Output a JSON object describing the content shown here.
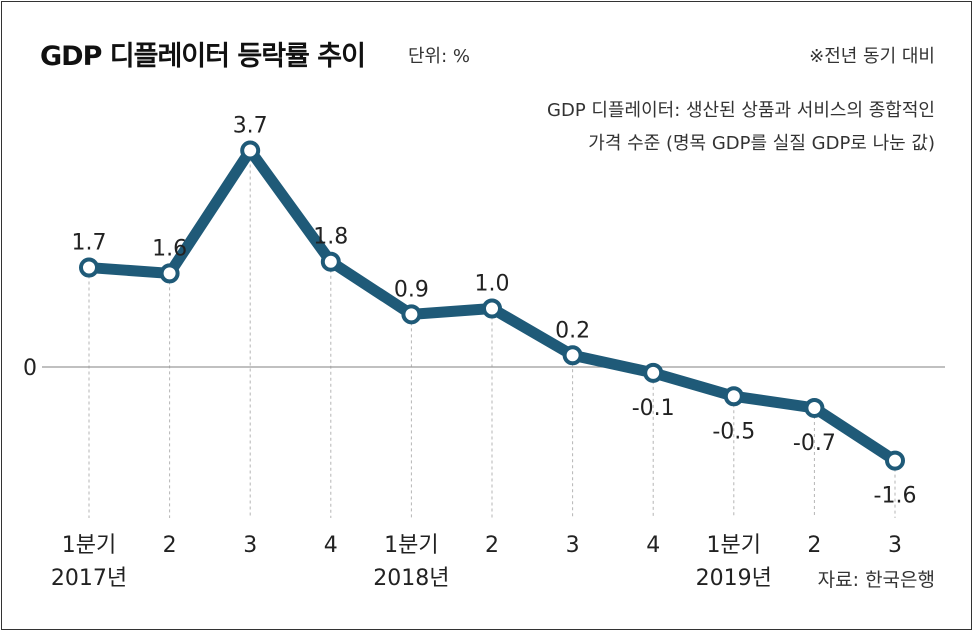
{
  "header": {
    "title": "GDP 디플레이터 등락률 추이",
    "unit": "단위: %",
    "basis": "※전년 동기 대비"
  },
  "note": {
    "line1": "GDP 디플레이터: 생산된 상품과 서비스의 종합적인",
    "line2": "가격 수준 (명목 GDP를 실질 GDP로 나눈 값)"
  },
  "source": "자료: 한국은행",
  "chart_data": {
    "type": "line",
    "categories": [
      "1분기",
      "2",
      "3",
      "4",
      "1분기",
      "2",
      "3",
      "4",
      "1분기",
      "2",
      "3"
    ],
    "year_labels": [
      {
        "index": 0,
        "text": "2017년"
      },
      {
        "index": 4,
        "text": "2018년"
      },
      {
        "index": 8,
        "text": "2019년"
      }
    ],
    "values": [
      1.7,
      1.6,
      3.7,
      1.8,
      0.9,
      1.0,
      0.2,
      -0.1,
      -0.5,
      -0.7,
      -1.6
    ],
    "value_labels": [
      "1.7",
      "1.6",
      "3.7",
      "1.8",
      "0.9",
      "1.0",
      "0.2",
      "-0.1",
      "-0.5",
      "-0.7",
      "-1.6"
    ],
    "y_tick_labels": [
      "0"
    ],
    "line_color": "#1f5a78",
    "grid": false
  }
}
